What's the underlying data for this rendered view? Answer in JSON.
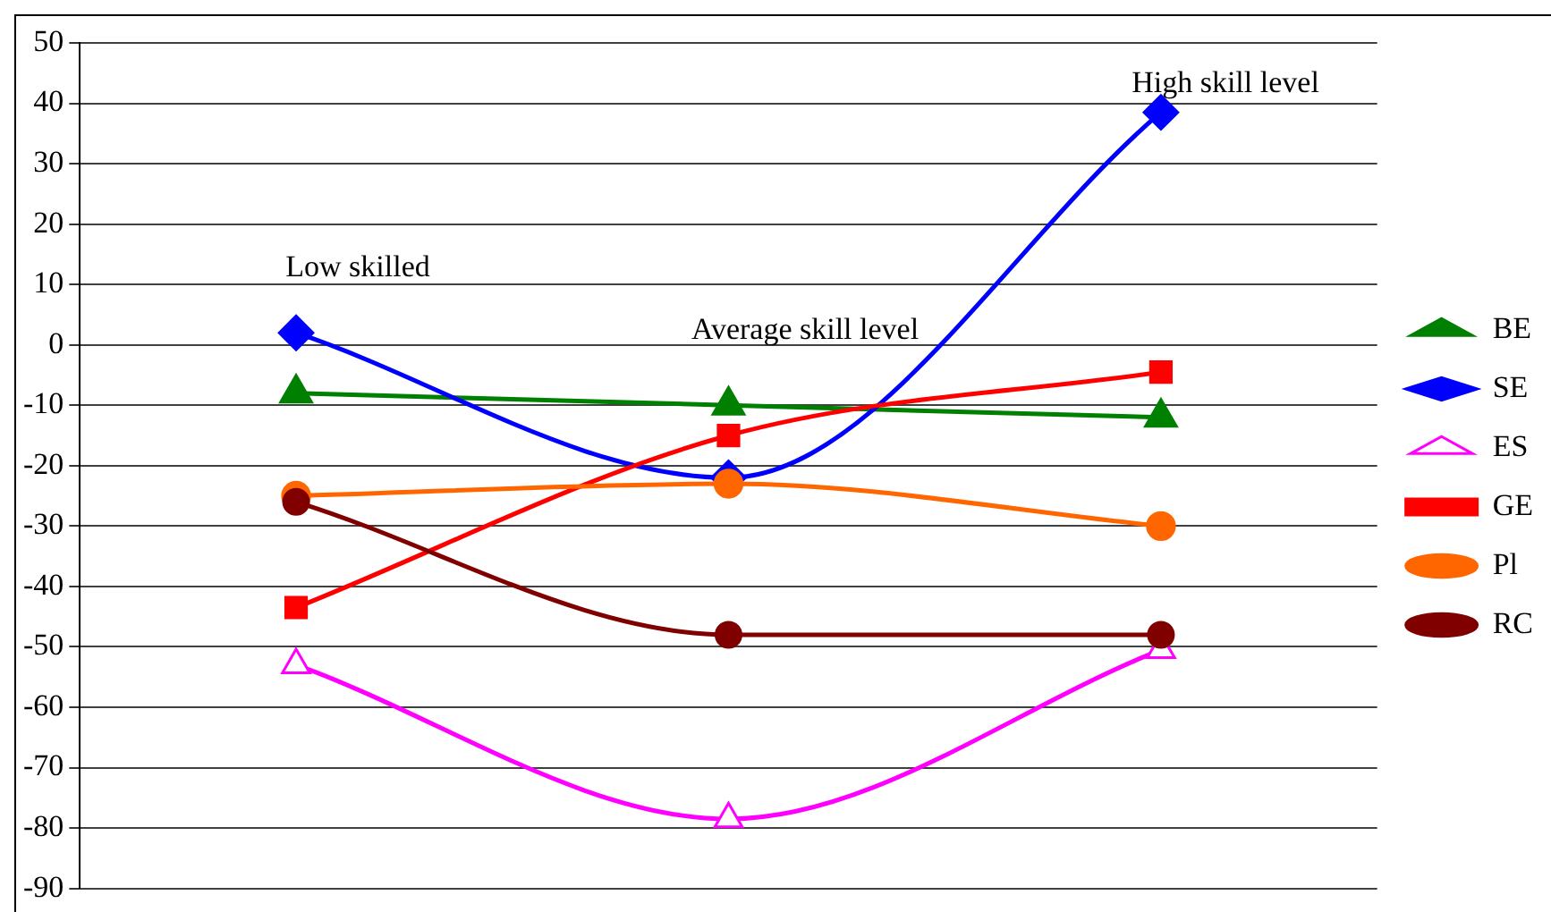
{
  "chart_data": {
    "type": "line",
    "categories": [
      null,
      null,
      null
    ],
    "ylim": [
      -90,
      50
    ],
    "yticks": [
      -90,
      -80,
      -70,
      -60,
      -50,
      -40,
      -30,
      -20,
      -10,
      0,
      10,
      20,
      30,
      40,
      50
    ],
    "grid": "y",
    "legend": "right",
    "series": [
      {
        "name": "BE",
        "color": "#008000",
        "marker": "triangle",
        "values": [
          -8,
          -10,
          -12
        ]
      },
      {
        "name": "SE",
        "color": "#0000ff",
        "marker": "diamond",
        "values": [
          2,
          -22,
          38.5
        ]
      },
      {
        "name": "ES",
        "color": "#ff00ff",
        "marker": "triangle",
        "values": [
          -53,
          -78.5,
          -50.5
        ]
      },
      {
        "name": "GE",
        "color": "#ff0000",
        "marker": "square",
        "values": [
          -43.5,
          -15,
          -4.5
        ]
      },
      {
        "name": "Pl",
        "color": "#ff6600",
        "marker": "circle",
        "values": [
          -25,
          -23,
          -30
        ]
      },
      {
        "name": "RC",
        "color": "#800000",
        "marker": "circle",
        "values": [
          -26,
          -48,
          -48
        ]
      }
    ],
    "annotations": [
      "Low skilled",
      "Average skill level",
      "High skill level"
    ]
  }
}
